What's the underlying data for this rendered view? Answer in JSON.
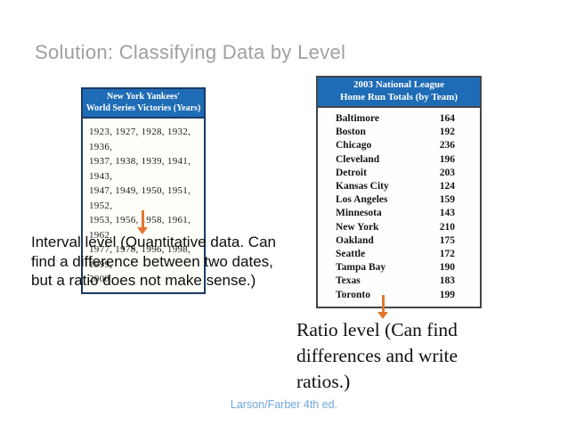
{
  "title": "Solution: Classifying Data by Level",
  "colors": {
    "header_blue": "#1e6cb5",
    "arrow_orange": "#e2762f",
    "title_gray": "#9fa0a2",
    "footer_blue": "#6fa8dc"
  },
  "yankees_table": {
    "header_line1": "New York Yankees'",
    "header_line2": "World Series Victories (Years)",
    "year_lines": [
      "1923,  1927,  1928,  1932,  1936,",
      "1937,  1938,  1939,  1941,  1943,",
      "1947,  1949,  1950,  1951,  1952,",
      "1953,  1956,  1958,  1961,  1962,",
      "1977,  1978,  1996,  1998,  1999,",
      "2000"
    ]
  },
  "homerun_table": {
    "header_line1": "2003 National League",
    "header_line2": "Home Run Totals (by Team)",
    "rows": [
      {
        "team": "Baltimore",
        "total": "164"
      },
      {
        "team": "Boston",
        "total": "192"
      },
      {
        "team": "Chicago",
        "total": "236"
      },
      {
        "team": "Cleveland",
        "total": "196"
      },
      {
        "team": "Detroit",
        "total": "203"
      },
      {
        "team": "Kansas City",
        "total": "124"
      },
      {
        "team": "Los Angeles",
        "total": "159"
      },
      {
        "team": "Minnesota",
        "total": "143"
      },
      {
        "team": "New York",
        "total": "210"
      },
      {
        "team": "Oakland",
        "total": "175"
      },
      {
        "team": "Seattle",
        "total": "172"
      },
      {
        "team": "Tampa Bay",
        "total": "190"
      },
      {
        "team": "Texas",
        "total": "183"
      },
      {
        "team": "Toronto",
        "total": "199"
      }
    ]
  },
  "interval_note": "Interval level (Quantitative data. Can find a difference between two dates, but a ratio does not make sense.)",
  "ratio_note": "Ratio level (Can find differences and write ratios.)",
  "footer": "Larson/Farber 4th ed."
}
